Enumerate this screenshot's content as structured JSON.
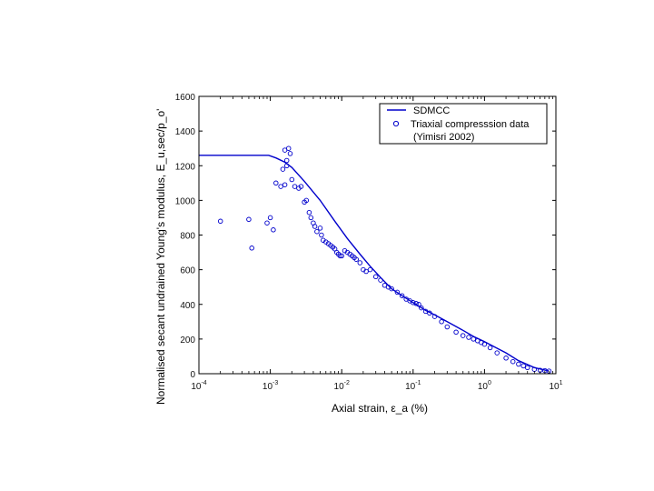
{
  "chart_data": {
    "type": "line",
    "title": "",
    "xlabel": "Axial strain, ε_a (%)",
    "ylabel": "Normalised secant undrained Young's modulus, E_u,sec/p_o'",
    "xscale": "log",
    "xlim": [
      0.0001,
      10
    ],
    "ylim": [
      0,
      1600
    ],
    "x_tick_labels": [
      {
        "base": "10",
        "exp": "-4"
      },
      {
        "base": "10",
        "exp": "-3"
      },
      {
        "base": "10",
        "exp": "-2"
      },
      {
        "base": "10",
        "exp": "-1"
      },
      {
        "base": "10",
        "exp": "0"
      },
      {
        "base": "10",
        "exp": "1"
      }
    ],
    "y_ticks": [
      0,
      200,
      400,
      600,
      800,
      1000,
      1200,
      1400,
      1600
    ],
    "y_tick_labels": [
      "0",
      "200",
      "400",
      "600",
      "800",
      "1000",
      "1200",
      "1400",
      "1600"
    ],
    "grid": false,
    "legend_position": "top-right",
    "legend": {
      "line_label": "SDMCC",
      "marker_label_line1": "Triaxial compresssion data",
      "marker_label_line2": "(Yimisri 2002)"
    },
    "colors": {
      "series": "#0000cc",
      "axes": "#000000"
    },
    "series": [
      {
        "name": "SDMCC",
        "kind": "line",
        "x": [
          0.0001,
          0.0005,
          0.00095,
          0.0012,
          0.0016,
          0.002,
          0.003,
          0.005,
          0.008,
          0.012,
          0.018,
          0.025,
          0.035,
          0.05,
          0.07,
          0.1,
          0.15,
          0.2,
          0.3,
          0.5,
          0.7,
          1.0,
          1.3,
          2.0,
          3.0,
          5.0,
          8.0
        ],
        "y": [
          1260,
          1260,
          1260,
          1245,
          1220,
          1190,
          1110,
          1000,
          880,
          780,
          690,
          620,
          555,
          490,
          450,
          410,
          365,
          340,
          300,
          250,
          215,
          185,
          160,
          120,
          75,
          35,
          15
        ]
      },
      {
        "name": "Triaxial compresssion data",
        "kind": "scatter",
        "x": [
          0.0002,
          0.0005,
          0.00055,
          0.0009,
          0.001,
          0.0011,
          0.0012,
          0.0014,
          0.0015,
          0.0016,
          0.0016,
          0.0017,
          0.0017,
          0.0018,
          0.0019,
          0.002,
          0.0022,
          0.0025,
          0.0027,
          0.003,
          0.0032,
          0.0035,
          0.0037,
          0.004,
          0.0042,
          0.0045,
          0.005,
          0.0052,
          0.0055,
          0.006,
          0.0065,
          0.007,
          0.0075,
          0.008,
          0.0085,
          0.009,
          0.0095,
          0.01,
          0.011,
          0.012,
          0.013,
          0.014,
          0.015,
          0.016,
          0.018,
          0.02,
          0.022,
          0.025,
          0.03,
          0.035,
          0.04,
          0.045,
          0.05,
          0.06,
          0.07,
          0.08,
          0.09,
          0.1,
          0.11,
          0.12,
          0.13,
          0.15,
          0.17,
          0.2,
          0.25,
          0.3,
          0.4,
          0.5,
          0.6,
          0.7,
          0.8,
          0.9,
          1.0,
          1.2,
          1.5,
          2.0,
          2.5,
          3.0,
          3.5,
          4.0,
          5.0,
          6.0,
          7.0,
          8.0
        ],
        "y": [
          880,
          890,
          725,
          870,
          900,
          830,
          1100,
          1080,
          1180,
          1090,
          1290,
          1230,
          1200,
          1300,
          1270,
          1120,
          1080,
          1070,
          1080,
          990,
          1000,
          930,
          900,
          870,
          850,
          820,
          840,
          800,
          770,
          760,
          750,
          740,
          730,
          720,
          700,
          690,
          680,
          680,
          710,
          700,
          690,
          680,
          670,
          660,
          640,
          600,
          590,
          600,
          560,
          540,
          510,
          500,
          490,
          470,
          450,
          430,
          420,
          410,
          405,
          400,
          380,
          360,
          350,
          330,
          300,
          270,
          240,
          220,
          210,
          200,
          190,
          180,
          170,
          150,
          120,
          90,
          70,
          55,
          45,
          35,
          25,
          20,
          18,
          15
        ]
      }
    ]
  }
}
